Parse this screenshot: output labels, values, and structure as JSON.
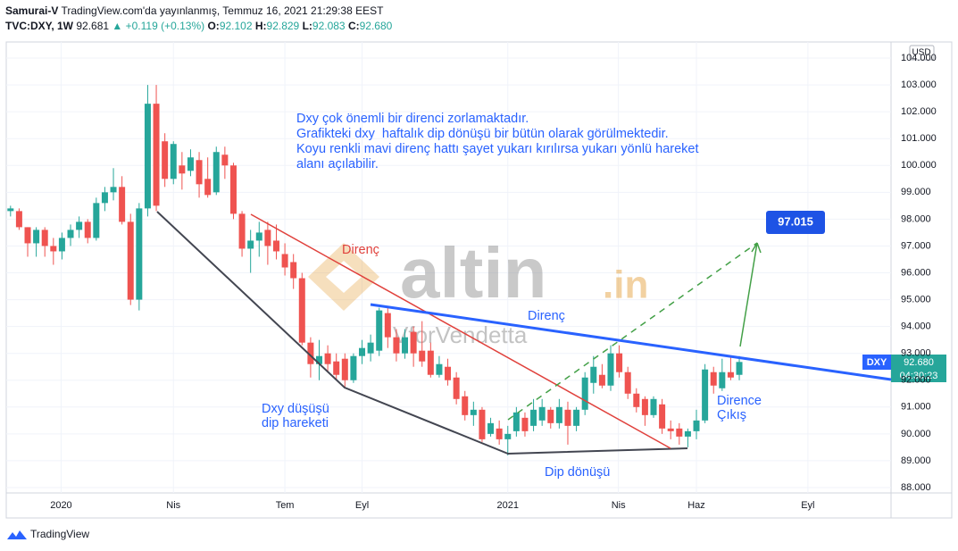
{
  "header": {
    "author": "Samurai-V",
    "published": "TradingView.com'da yayınlanmış, Temmuz 16, 2021 21:29:38 EEST",
    "symbol": "TVC:DXY, 1W",
    "last": "92.681",
    "change": "▲ +0.119 (+0.13%)",
    "o_label": "O:",
    "o": "92.102",
    "h_label": "H:",
    "h": "92.829",
    "l_label": "L:",
    "l": "92.083",
    "c_label": "C:",
    "c": "92.680"
  },
  "chart_data": {
    "type": "candlestick",
    "currency": "USD",
    "open": [
      98.3,
      98.3,
      97.7,
      97.1,
      97.6,
      97.0,
      96.8,
      97.3,
      97.6,
      97.9,
      97.3,
      98.6,
      99.0,
      99.2,
      97.9,
      95.0,
      98.4,
      102.3,
      100.9,
      99.5,
      100.0,
      99.8,
      100.2,
      99.5,
      99.0,
      100.4,
      100.0,
      98.2,
      96.9,
      97.2,
      97.6,
      97.2,
      96.7,
      96.4,
      95.8,
      93.4,
      92.6,
      93.0,
      92.7,
      92.8,
      92.0,
      92.9,
      93.0,
      93.1,
      94.5,
      93.6,
      93.0,
      93.8,
      93.1,
      93.1,
      92.2,
      92.5,
      92.1,
      91.4,
      90.7,
      90.9,
      90.0,
      90.2,
      89.8,
      90.1,
      90.6,
      90.3,
      90.5,
      90.9,
      90.4,
      90.9,
      90.3,
      90.9,
      91.9,
      92.2,
      91.8,
      93.0,
      92.3,
      91.5,
      91.3,
      90.7,
      91.1,
      90.2,
      90.2,
      89.9,
      90.1,
      90.5,
      92.3,
      91.7,
      92.3,
      92.2
    ],
    "high": [
      98.5,
      98.4,
      97.7,
      97.7,
      97.7,
      97.3,
      97.5,
      97.8,
      98.1,
      98.0,
      98.8,
      99.2,
      99.9,
      99.6,
      98.2,
      98.6,
      103.0,
      103.0,
      101.2,
      100.9,
      100.5,
      100.6,
      100.5,
      100.3,
      100.7,
      100.7,
      100.1,
      98.3,
      97.6,
      97.9,
      97.9,
      97.8,
      97.1,
      96.7,
      96.0,
      93.6,
      93.5,
      93.3,
      93.0,
      93.0,
      93.0,
      93.5,
      93.7,
      94.7,
      94.7,
      93.9,
      93.9,
      94.0,
      94.2,
      93.4,
      92.9,
      92.8,
      92.3,
      91.6,
      91.2,
      91.0,
      90.6,
      90.5,
      90.3,
      91.0,
      90.8,
      91.3,
      91.3,
      91.0,
      91.3,
      91.2,
      91.0,
      92.3,
      92.9,
      92.6,
      93.3,
      93.3,
      92.5,
      91.7,
      91.4,
      91.4,
      91.3,
      90.5,
      90.4,
      90.2,
      90.9,
      92.6,
      92.5,
      92.8,
      92.9,
      92.9
    ],
    "low": [
      98.1,
      97.6,
      96.6,
      96.6,
      96.6,
      96.3,
      96.5,
      97.0,
      97.3,
      97.1,
      97.2,
      98.3,
      98.7,
      97.8,
      94.8,
      94.6,
      98.1,
      98.3,
      99.2,
      99.3,
      99.1,
      99.6,
      98.8,
      98.8,
      98.9,
      99.5,
      98.0,
      96.6,
      96.0,
      96.6,
      96.3,
      96.5,
      95.9,
      95.4,
      93.3,
      92.1,
      92.0,
      92.3,
      92.0,
      91.7,
      91.9,
      92.6,
      92.7,
      92.9,
      93.2,
      92.7,
      92.8,
      92.5,
      92.5,
      92.1,
      92.1,
      91.8,
      91.1,
      90.5,
      90.3,
      89.7,
      89.9,
      89.6,
      89.2,
      89.9,
      89.9,
      90.1,
      90.3,
      90.2,
      90.2,
      89.6,
      90.1,
      90.7,
      91.5,
      91.7,
      91.6,
      92.1,
      91.3,
      90.8,
      90.3,
      90.6,
      90.0,
      89.8,
      89.6,
      89.5,
      89.8,
      90.4,
      91.5,
      91.6,
      92.0,
      92.0
    ],
    "close": [
      98.4,
      97.7,
      97.1,
      97.6,
      97.0,
      96.8,
      97.3,
      97.6,
      97.9,
      97.3,
      98.6,
      99.0,
      99.2,
      97.9,
      95.0,
      98.4,
      102.3,
      98.5,
      99.5,
      100.8,
      99.7,
      100.3,
      99.3,
      98.9,
      100.5,
      100.0,
      98.2,
      96.9,
      97.2,
      97.5,
      97.0,
      96.8,
      96.2,
      95.8,
      93.4,
      92.6,
      92.9,
      92.6,
      92.2,
      92.0,
      92.9,
      93.2,
      93.4,
      94.6,
      93.6,
      93.0,
      93.6,
      93.0,
      92.7,
      92.2,
      92.6,
      92.0,
      91.3,
      90.7,
      90.9,
      89.8,
      90.4,
      89.8,
      90.0,
      90.8,
      90.1,
      90.9,
      91.0,
      90.4,
      91.0,
      90.3,
      90.9,
      92.1,
      92.5,
      91.8,
      93.0,
      92.3,
      91.5,
      91.0,
      90.7,
      91.3,
      90.2,
      90.1,
      89.9,
      90.1,
      90.5,
      92.4,
      91.8,
      92.3,
      92.1,
      92.68
    ],
    "up_color": "#26a69a",
    "down_color": "#ef5350",
    "xlim": [
      -0.5,
      102.7
    ],
    "xticks": [
      {
        "value": 5.9,
        "label": "2020"
      },
      {
        "value": 19.0,
        "label": "Nis"
      },
      {
        "value": 32.0,
        "label": "Tem"
      },
      {
        "value": 41.0,
        "label": "Eyl"
      },
      {
        "value": 58.0,
        "label": "2021"
      },
      {
        "value": 70.9,
        "label": "Nis"
      },
      {
        "value": 80.0,
        "label": "Haz"
      },
      {
        "value": 93.0,
        "label": "Eyl"
      }
    ],
    "ylim": [
      87.8,
      104.6
    ],
    "yticks": [
      {
        "value": 88,
        "label": "88.000"
      },
      {
        "value": 89,
        "label": "89.000"
      },
      {
        "value": 90,
        "label": "90.000"
      },
      {
        "value": 91,
        "label": "91.000"
      },
      {
        "value": 92,
        "label": "92.000"
      },
      {
        "value": 93,
        "label": "93.000"
      },
      {
        "value": 94,
        "label": "94.000"
      },
      {
        "value": 95,
        "label": "95.000"
      },
      {
        "value": 96,
        "label": "96.000"
      },
      {
        "value": 97,
        "label": "97.000"
      },
      {
        "value": 98,
        "label": "98.000"
      },
      {
        "value": 99,
        "label": "99.000"
      },
      {
        "value": 100,
        "label": "100.000"
      },
      {
        "value": 101,
        "label": "101.000"
      },
      {
        "value": 102,
        "label": "102.000"
      },
      {
        "value": 103,
        "label": "103.000"
      },
      {
        "value": 104,
        "label": "104.000"
      }
    ],
    "grid": true,
    "price_label": {
      "symbol": "DXY",
      "price": "92.680",
      "countdown": "04:30:23"
    },
    "target_label": "97.015",
    "annotations": {
      "main": [
        "Dxy çok önemli bir direnci zorlamaktadır.",
        "Grafikteki dxy  haftalık dip dönüşü bir bütün olarak görülmektedir.",
        "Koyu renkli mavi direnç hattı şayet yukarı kırılırsa yukarı yönlü hareket",
        "alanı açılabilir."
      ],
      "resistance_red": "Direnç",
      "resistance_blue": "Direnç",
      "decline": [
        "Dxy düşüşü",
        "dip hareketi"
      ],
      "bottom": "Dip dönüşü",
      "breakout": [
        "Dirence",
        "Çıkış"
      ]
    },
    "watermark": "altin",
    "watermark_suffix": ".in",
    "watermark2": "VforVendetta"
  },
  "footer": "TradingView"
}
